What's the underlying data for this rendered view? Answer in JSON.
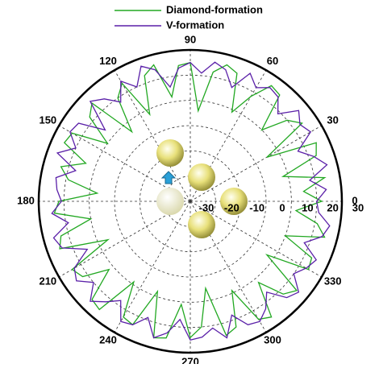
{
  "chart_data": {
    "type": "polar",
    "theta": [
      0,
      5,
      10,
      15,
      20,
      25,
      30,
      35,
      40,
      45,
      50,
      55,
      60,
      65,
      70,
      75,
      80,
      85,
      90,
      95,
      100,
      105,
      110,
      115,
      120,
      125,
      130,
      135,
      140,
      145,
      150,
      155,
      160,
      165,
      170,
      175,
      180,
      185,
      190,
      195,
      200,
      205,
      210,
      215,
      220,
      225,
      230,
      235,
      240,
      245,
      250,
      255,
      260,
      265,
      270,
      275,
      280,
      285,
      290,
      295,
      300,
      305,
      310,
      315,
      320,
      325,
      330,
      335,
      340,
      345,
      350,
      355
    ],
    "series": [
      {
        "name": "Diamond-formation",
        "color": "#22a822",
        "values": [
          22,
          15,
          24,
          8,
          23,
          25,
          5,
          24,
          20,
          10,
          25,
          26,
          18,
          9,
          24,
          26,
          22,
          6,
          25,
          24,
          12,
          26,
          23,
          8,
          24,
          20,
          6,
          25,
          22,
          10,
          24,
          25,
          14,
          23,
          19,
          7,
          22,
          24,
          10,
          23,
          25,
          6,
          24,
          22,
          12,
          25,
          26,
          9,
          23,
          24,
          8,
          26,
          25,
          11,
          24,
          20,
          5,
          25,
          23,
          9,
          24,
          26,
          12,
          22,
          25,
          7,
          24,
          23,
          10,
          25,
          21,
          12
        ]
      },
      {
        "name": "V-formation",
        "color": "#5a1fa8",
        "values": [
          20,
          24,
          18,
          26,
          22,
          17,
          25,
          23,
          26,
          19,
          24,
          25,
          22,
          26,
          18,
          24,
          26,
          21,
          25,
          23,
          16,
          24,
          27,
          20,
          25,
          18,
          23,
          26,
          14,
          24,
          25,
          20,
          26,
          17,
          24,
          23,
          21,
          25,
          19,
          26,
          24,
          15,
          23,
          25,
          20,
          26,
          22,
          18,
          25,
          24,
          19,
          26,
          23,
          17,
          25,
          24,
          21,
          26,
          18,
          24,
          25,
          22,
          17,
          24,
          26,
          20,
          23,
          25,
          18,
          24,
          26,
          21
        ]
      }
    ],
    "rlim": [
      -30,
      30
    ],
    "rticks": [
      -30,
      -20,
      -10,
      0,
      10,
      20,
      30
    ],
    "thetaticks": [
      0,
      30,
      60,
      90,
      120,
      150,
      180,
      210,
      240,
      270,
      300,
      330
    ],
    "grid": true
  }
}
